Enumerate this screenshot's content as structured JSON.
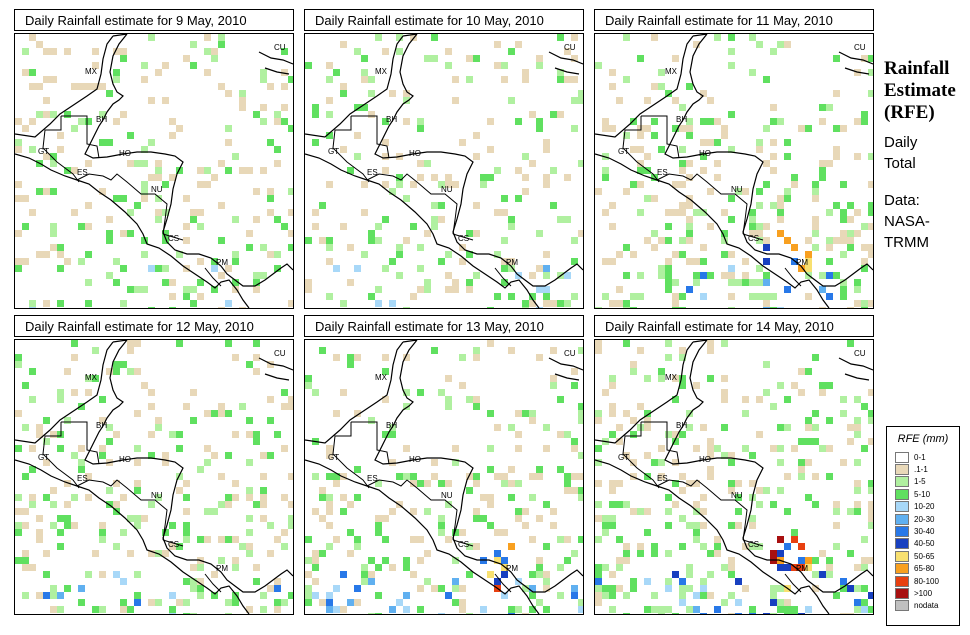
{
  "panels": [
    {
      "title": "Daily Rainfall estimate for  9 May, 2010",
      "intensity": 0.3
    },
    {
      "title": "Daily Rainfall estimate for  10 May, 2010",
      "intensity": 0.35
    },
    {
      "title": "Daily Rainfall estimate for  11 May, 2010",
      "intensity": 0.85
    },
    {
      "title": "Daily Rainfall estimate for  12 May, 2010",
      "intensity": 0.65
    },
    {
      "title": "Daily Rainfall estimate for  13 May, 2010",
      "intensity": 0.75
    },
    {
      "title": "Daily Rainfall estimate for  14 May, 2010",
      "intensity": 0.95
    }
  ],
  "country_labels": [
    "MX",
    "BH",
    "GT",
    "HO",
    "ES",
    "NU",
    "CS",
    "PM",
    "CU"
  ],
  "side": {
    "title_1": "Rainfall",
    "title_2": "Estimate",
    "title_3": "(RFE)",
    "desc_1": "Daily",
    "desc_2": "Total",
    "data_1": "Data:",
    "data_2": "NASA-",
    "data_3": "TRMM"
  },
  "legend": {
    "title": "RFE (mm)",
    "items": [
      {
        "label": "0-1",
        "color": "#ffffff"
      },
      {
        "label": ".1-1",
        "color": "#e8d8b8"
      },
      {
        "label": "1-5",
        "color": "#b0f0a0"
      },
      {
        "label": "5-10",
        "color": "#60e060"
      },
      {
        "label": "10-20",
        "color": "#a8d8f8"
      },
      {
        "label": "20-30",
        "color": "#60b0f0"
      },
      {
        "label": "30-40",
        "color": "#2878e8"
      },
      {
        "label": "40-50",
        "color": "#1840c0"
      },
      {
        "label": "50-65",
        "color": "#f8e070"
      },
      {
        "label": "65-80",
        "color": "#f8a020"
      },
      {
        "label": "80-100",
        "color": "#e84010"
      },
      {
        "label": ">100",
        "color": "#a81010"
      },
      {
        "label": "nodata",
        "color": "#c0c0c0"
      }
    ]
  }
}
